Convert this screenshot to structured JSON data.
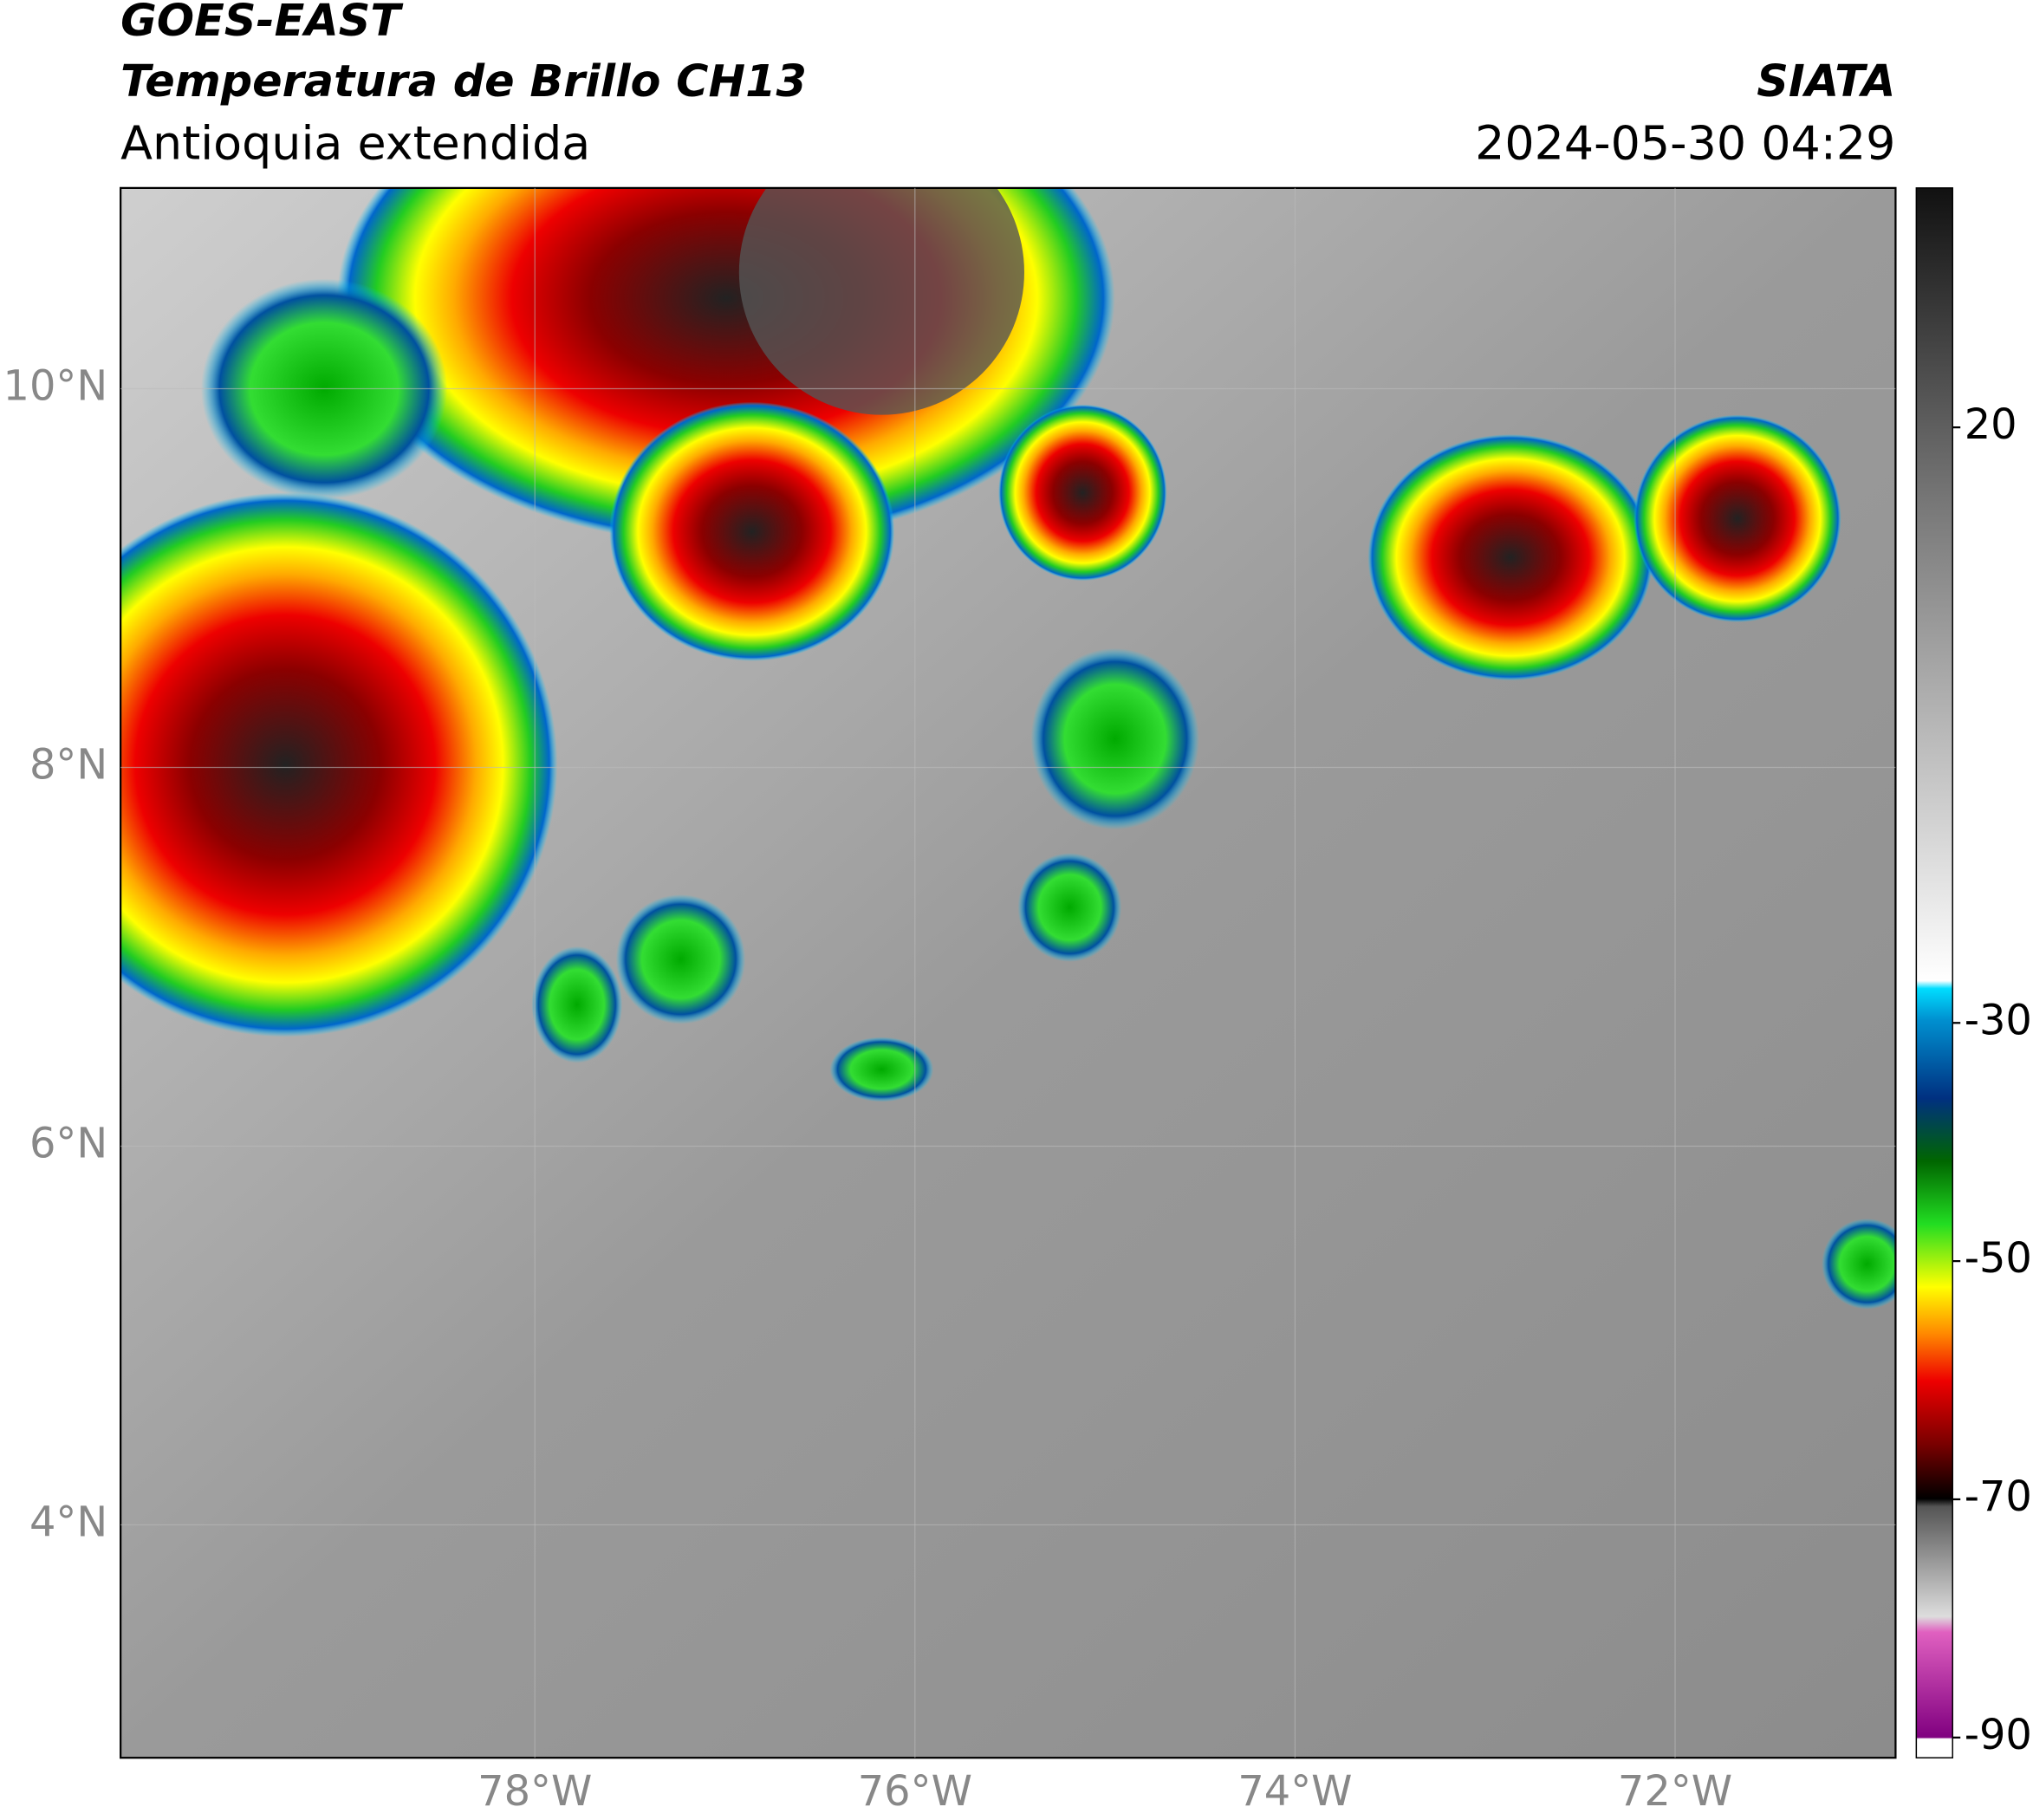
{
  "header": {
    "title": "GOES-EAST",
    "subtitle": "Temperatura de Brillo CH13",
    "region": "Antioquia extendida",
    "source": "SIATA",
    "datetime": "2024-05-30 04:29"
  },
  "map": {
    "latlim": [
      2.77,
      11.06
    ],
    "lonlim": [
      -80.18,
      -70.84
    ],
    "lat_ticks": [
      {
        "value": 10,
        "label": "10°N"
      },
      {
        "value": 8,
        "label": "8°N"
      },
      {
        "value": 6,
        "label": "6°N"
      },
      {
        "value": 4,
        "label": "4°N"
      }
    ],
    "lon_ticks": [
      {
        "value": -78,
        "label": "78°W"
      },
      {
        "value": -76,
        "label": "76°W"
      },
      {
        "value": -74,
        "label": "74°W"
      },
      {
        "value": -72,
        "label": "72°W"
      }
    ]
  },
  "colorbar": {
    "lim": [
      -91.7,
      40.1
    ],
    "ticks": [
      20,
      -30,
      -50,
      -70,
      -90
    ]
  }
}
